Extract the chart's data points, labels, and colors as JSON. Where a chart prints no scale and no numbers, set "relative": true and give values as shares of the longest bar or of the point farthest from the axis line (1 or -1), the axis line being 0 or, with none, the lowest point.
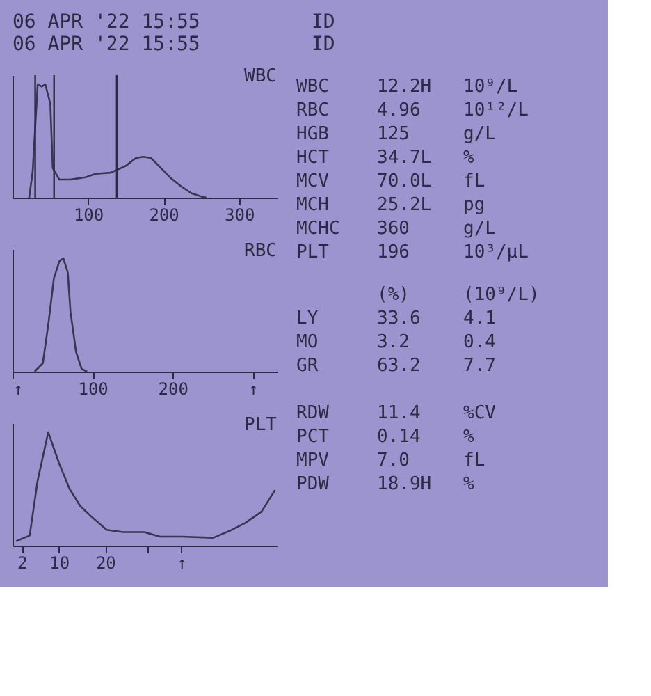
{
  "chart_data": [
    {
      "type": "line",
      "title": "WBC",
      "relative": true,
      "tick_labels": "x",
      "grid": false,
      "xlim": [
        0,
        350
      ],
      "xticks": [
        100,
        200,
        300
      ],
      "ref_lines": [
        {
          "axis": "x",
          "value": 30,
          "label": null
        },
        {
          "axis": "x",
          "value": 55,
          "label": null
        },
        {
          "axis": "x",
          "value": 138,
          "label": null
        }
      ],
      "series": [
        {
          "color": "#3a3552",
          "x": [
            22,
            26.7,
            33.3,
            38.7,
            43.3,
            50,
            53.3,
            62,
            76.7,
            96.7,
            110,
            130,
            140,
            150,
            163.3,
            173.3,
            183.3,
            196.7,
            210,
            223.3,
            236.7,
            250,
            256.7
          ],
          "values": [
            0,
            0.23,
            1.0,
            0.98,
            1.0,
            0.83,
            0.26,
            0.16,
            0.16,
            0.18,
            0.21,
            0.22,
            0.25,
            0.28,
            0.35,
            0.36,
            0.35,
            0.26,
            0.17,
            0.1,
            0.04,
            0.01,
            0
          ]
        }
      ]
    },
    {
      "type": "line",
      "title": "RBC",
      "relative": true,
      "tick_labels": "x",
      "grid": false,
      "xlim": [
        0,
        330
      ],
      "xticks": [
        {
          "value": 0,
          "label": "↑"
        },
        100,
        200,
        {
          "value": 300,
          "label": "↑"
        }
      ],
      "series": [
        {
          "color": "#3a3552",
          "x": [
            27.6,
            37.9,
            44.8,
            51.7,
            58.6,
            63.4,
            69,
            72.4,
            79.3,
            86.2,
            93.1
          ],
          "values": [
            0,
            0.075,
            0.425,
            0.825,
            0.975,
            1,
            0.875,
            0.525,
            0.175,
            0.025,
            0
          ]
        }
      ]
    },
    {
      "type": "line",
      "title": "PLT",
      "relative": true,
      "tick_labels": "x",
      "grid": false,
      "xlim": [
        0,
        57
      ],
      "xticks": [
        2,
        10,
        20,
        {
          "value": 29,
          "label": null
        },
        {
          "value": 36.4,
          "label": "↑"
        }
      ],
      "series": [
        {
          "color": "#3a3552",
          "x": [
            0.8,
            3.7,
            5.4,
            7.7,
            10,
            12.3,
            14.6,
            16.9,
            20.3,
            23.8,
            28.4,
            31.8,
            36.4,
            43.3,
            46.8,
            50.2,
            53.7,
            56.6
          ],
          "values": [
            0.04,
            0.09,
            0.57,
            1,
            0.73,
            0.5,
            0.35,
            0.26,
            0.14,
            0.12,
            0.12,
            0.08,
            0.08,
            0.07,
            0.13,
            0.2,
            0.3,
            0.49
          ]
        }
      ]
    },
    {
      "type": "other",
      "annotations": [
        "06 APR '22 15:55",
        "ID",
        "06 APR '22 15:55",
        "ID",
        "WBC",
        "12.2H",
        "10⁹/L",
        "RBC",
        "4.96",
        "10¹²/L",
        "HGB",
        "125",
        "g/L",
        "HCT",
        "34.7L",
        "%",
        "MCV",
        "70.0L",
        "fL",
        "MCH",
        "25.2L",
        "pg",
        "MCHC",
        "360",
        "g/L",
        "PLT",
        "196",
        "10³/µL",
        "(%)",
        "(10⁹/L)",
        "LY",
        "33.6",
        "4.1",
        "MO",
        "3.2",
        "0.4",
        "GR",
        "63.2",
        "7.7",
        "RDW",
        "11.4",
        "%CV",
        "PCT",
        "0.14",
        "%",
        "MPV",
        "7.0",
        "fL",
        "PDW",
        "18.9H",
        "%"
      ]
    }
  ]
}
